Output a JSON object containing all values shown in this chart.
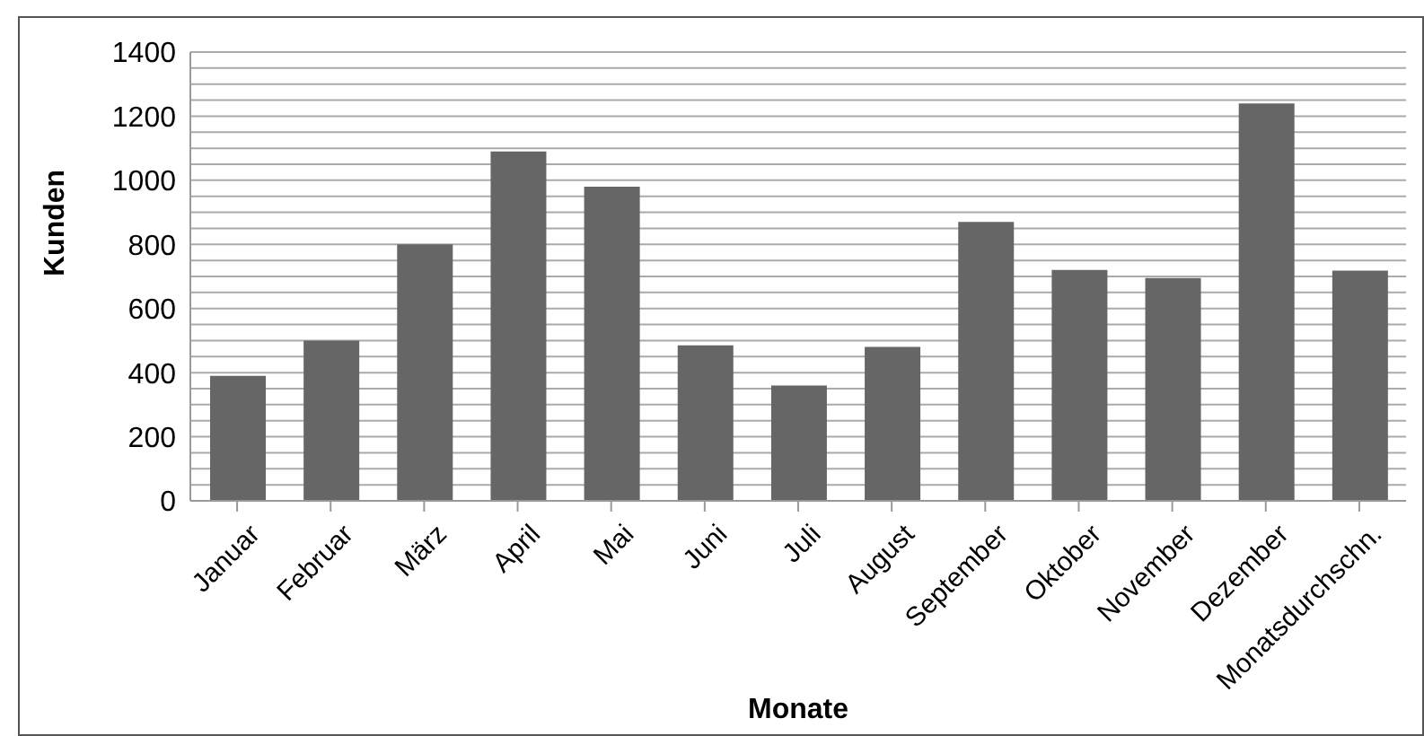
{
  "chart_data": {
    "type": "bar",
    "xlabel": "Monate",
    "ylabel": "Kunden",
    "categories": [
      "Januar",
      "Februar",
      "März",
      "April",
      "Mai",
      "Juni",
      "Juli",
      "August",
      "September",
      "Oktober",
      "November",
      "Dezember",
      "Monatsdurchschn."
    ],
    "values": [
      390,
      500,
      800,
      1090,
      980,
      485,
      360,
      480,
      870,
      720,
      695,
      1240,
      718
    ],
    "color": "#666666",
    "ylim": [
      0,
      1400
    ],
    "yticks": [
      0,
      {
        "value": 50,
        "label": null
      },
      {
        "value": 100,
        "label": null
      },
      {
        "value": 150,
        "label": null
      },
      200,
      {
        "value": 250,
        "label": null
      },
      {
        "value": 300,
        "label": null
      },
      {
        "value": 350,
        "label": null
      },
      400,
      {
        "value": 450,
        "label": null
      },
      {
        "value": 500,
        "label": null
      },
      {
        "value": 550,
        "label": null
      },
      600,
      {
        "value": 650,
        "label": null
      },
      {
        "value": 700,
        "label": null
      },
      {
        "value": 750,
        "label": null
      },
      800,
      {
        "value": 850,
        "label": null
      },
      {
        "value": 900,
        "label": null
      },
      {
        "value": 950,
        "label": null
      },
      1000,
      {
        "value": 1050,
        "label": null
      },
      {
        "value": 1100,
        "label": null
      },
      {
        "value": 1150,
        "label": null
      },
      1200,
      {
        "value": 1250,
        "label": null
      },
      {
        "value": 1300,
        "label": null
      },
      {
        "value": 1350,
        "label": null
      },
      1400
    ],
    "grid": "y",
    "legend": false
  }
}
